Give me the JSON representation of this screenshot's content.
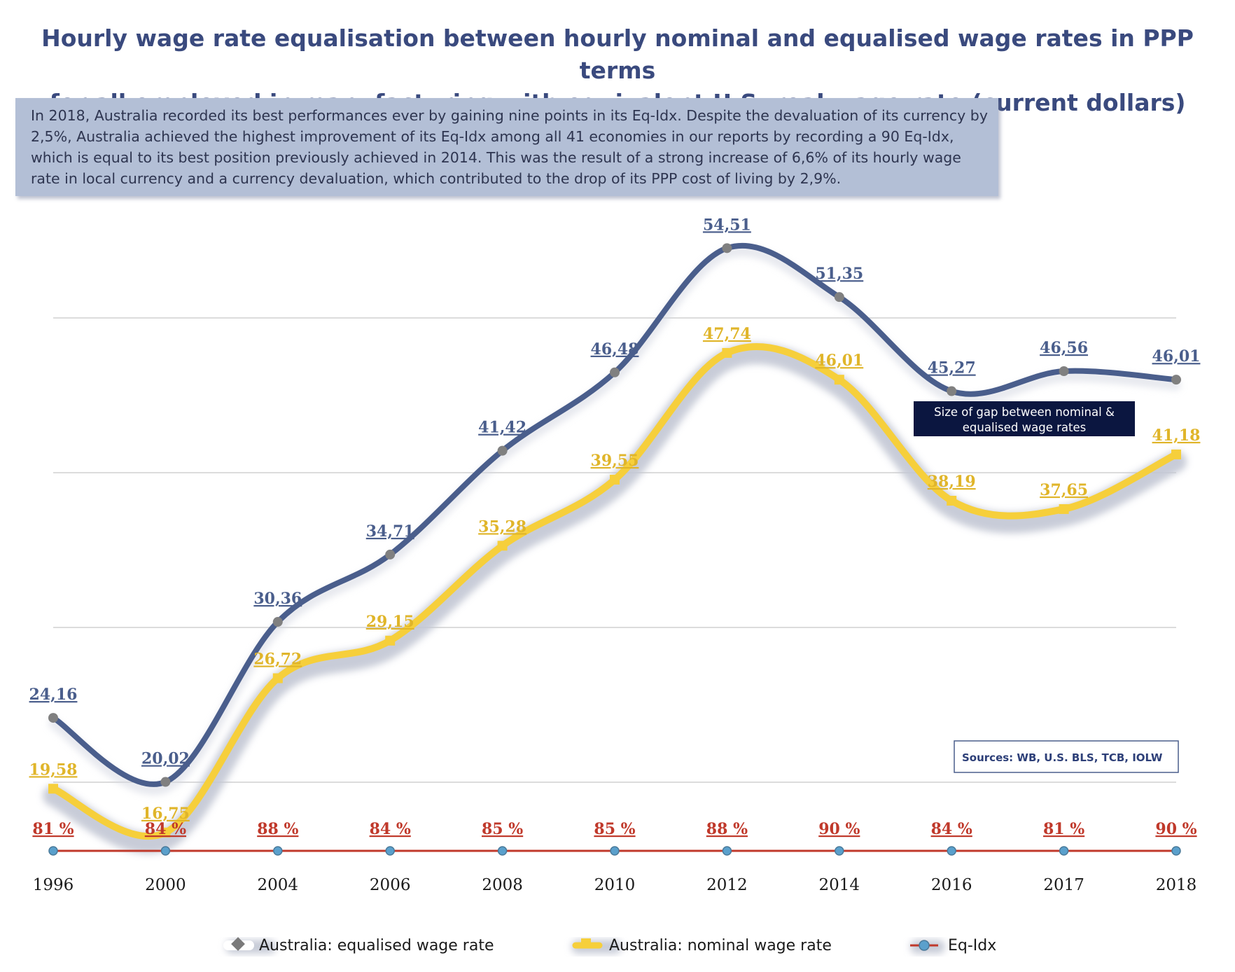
{
  "title": {
    "line1": "Hourly wage rate equalisation between hourly nominal and equalised wage rates in PPP terms",
    "line2": "for all employed in manufacturing with equivalent U.S. real wage rate (current dollars)"
  },
  "description": "In 2018, Australia recorded its best performances ever by gaining nine points in its Eq-Idx. Despite the devaluation of its currency by 2,5%, Australia achieved the highest improvement of its Eq-Idx among all 41 economies in our reports by recording a 90 Eq-Idx, which is equal to its best position previously achieved in 2014. This was the result of a strong increase of 6,6% of its hourly wage rate in local currency and a currency devaluation, which contributed to the drop of its PPP cost of living by 2,9%.",
  "annotation": {
    "line1": "Size of gap between nominal &",
    "line2": "equalised wage rates"
  },
  "sources": "Sources: WB, U.S. BLS, TCB, IOLW",
  "colors": {
    "equalised": "#4a5e8c",
    "nominal": "#f6cf3b",
    "nominal_label": "#e0b52a",
    "eqidx": "#c0392b",
    "eqidx_marker": "#5aa0cc",
    "title": "#3a4a7e",
    "grid": "#b8b8b8"
  },
  "chart_data": {
    "type": "line",
    "categories": [
      "1996",
      "2000",
      "2004",
      "2006",
      "2008",
      "2010",
      "2012",
      "2014",
      "2016",
      "2017",
      "2018"
    ],
    "ylim": [
      10,
      60
    ],
    "series": [
      {
        "name": "Australia: equalised wage rate",
        "values": [
          24.16,
          20.02,
          30.36,
          34.71,
          41.42,
          46.48,
          54.51,
          51.35,
          45.27,
          46.56,
          46.01
        ],
        "labels": [
          "24,16",
          "20,02",
          "30,36",
          "34,71",
          "41,42",
          "46,48",
          "54,51",
          "51,35",
          "45,27",
          "46,56",
          "46,01"
        ]
      },
      {
        "name": "Australia: nominal wage rate",
        "values": [
          19.58,
          16.75,
          26.72,
          29.15,
          35.28,
          39.55,
          47.74,
          46.01,
          38.19,
          37.65,
          41.18
        ],
        "labels": [
          "19,58",
          "16,75",
          "26,72",
          "29,15",
          "35,28",
          "39,55",
          "47,74",
          "46,01",
          "38,19",
          "37,65",
          "41,18"
        ]
      },
      {
        "name": "Eq-Idx",
        "values": [
          81,
          84,
          88,
          84,
          85,
          85,
          88,
          90,
          84,
          81,
          90
        ],
        "labels": [
          "81 %",
          "84 %",
          "88 %",
          "84 %",
          "85 %",
          "85 %",
          "88 %",
          "90 %",
          "84 %",
          "81 %",
          "90 %"
        ]
      }
    ],
    "legend": [
      "Australia: equalised wage rate",
      "Australia: nominal wage rate",
      "Eq-Idx"
    ],
    "legend_position": "bottom",
    "grid": true
  }
}
